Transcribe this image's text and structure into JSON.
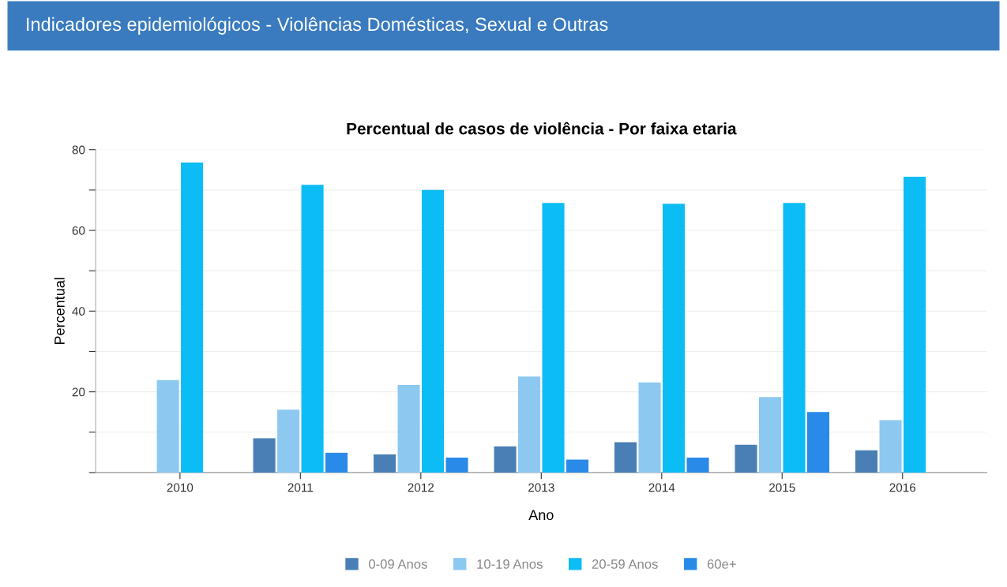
{
  "chart_data": {
    "type": "bar",
    "title": "Percentual de casos de violência - Por faixa etaria",
    "xlabel": "Ano",
    "ylabel": "Percentual",
    "annotations": [
      "Indicadores epidemiológicos - Violências Domésticas, Sexual e Outras"
    ],
    "categories": [
      "2010",
      "2011",
      "2012",
      "2013",
      "2014",
      "2015",
      "2016"
    ],
    "series": [
      {
        "name": "0-09 Anos",
        "color": "#4a7fb5",
        "values": [
          null,
          8.5,
          4.5,
          6.5,
          7.5,
          6.9,
          5.5
        ]
      },
      {
        "name": "10-19 Anos",
        "color": "#8cc8f0",
        "values": [
          22.9,
          15.6,
          21.7,
          23.8,
          22.3,
          18.7,
          13.0
        ]
      },
      {
        "name": "20-59 Anos",
        "color": "#0bbcf5",
        "values": [
          76.8,
          71.3,
          70.0,
          66.8,
          66.6,
          66.8,
          73.3
        ]
      },
      {
        "name": "60e+",
        "color": "#2a8ae8",
        "values": [
          null,
          4.9,
          3.7,
          3.2,
          3.7,
          15.0,
          null
        ]
      }
    ],
    "ylim": [
      0,
      80
    ],
    "yticks": [
      {
        "value": 0,
        "label": null
      },
      {
        "value": 10,
        "label": null
      },
      20,
      {
        "value": 30,
        "label": null
      },
      40,
      {
        "value": 50,
        "label": null
      },
      60,
      {
        "value": 70,
        "label": null
      },
      80
    ],
    "grid": "y",
    "legend": "bottom"
  }
}
